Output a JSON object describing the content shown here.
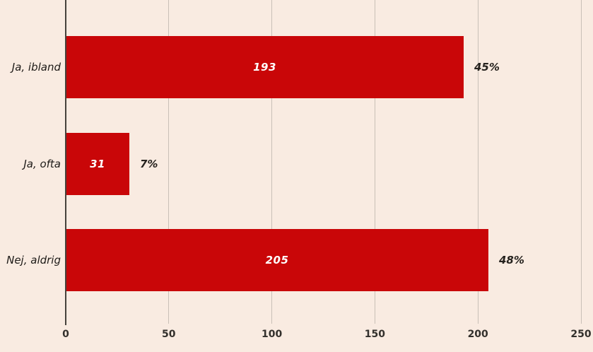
{
  "chart_data": {
    "type": "bar",
    "orientation": "horizontal",
    "title": "",
    "categories": [
      "Ja, ibland",
      "Ja, ofta",
      "Nej, aldrig"
    ],
    "values": [
      193,
      31,
      205
    ],
    "bar_value_labels": [
      "193",
      "31",
      "205"
    ],
    "percent_labels": [
      "45%",
      "7%",
      "48%"
    ],
    "x_ticks": [
      0,
      50,
      100,
      150,
      200,
      250
    ],
    "xlim": [
      0,
      250
    ],
    "xlabel": "",
    "ylabel": "",
    "grid": true,
    "legend": false
  },
  "colors": {
    "background": "#f9ebe1",
    "bar": "#c90608",
    "bar_value_text": "#ffffff",
    "category_text": "#1e1b18",
    "percent_text": "#26221e",
    "tick_text": "#33302c",
    "gridline": "#c9c0b7",
    "axis_line": "#46423c"
  }
}
